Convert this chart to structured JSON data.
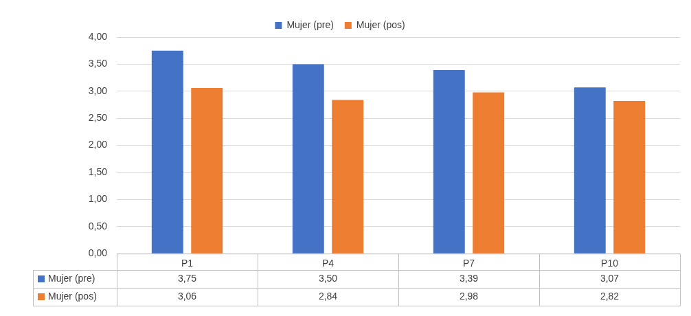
{
  "chart_data": {
    "type": "bar",
    "categories": [
      "P1",
      "P4",
      "P7",
      "P10"
    ],
    "series": [
      {
        "name": "Mujer (pre)",
        "color": "#4472c4",
        "values": [
          3.75,
          3.5,
          3.39,
          3.07
        ],
        "value_labels": [
          "3,75",
          "3,50",
          "3,39",
          "3,07"
        ]
      },
      {
        "name": "Mujer (pos)",
        "color": "#ed7d31",
        "values": [
          3.06,
          2.84,
          2.98,
          2.82
        ],
        "value_labels": [
          "3,06",
          "2,84",
          "2,98",
          "2,82"
        ]
      }
    ],
    "ylim": [
      0,
      4
    ],
    "yticks": [
      {
        "value": 0,
        "label": "0,00"
      },
      {
        "value": 0.5,
        "label": "0,50"
      },
      {
        "value": 1,
        "label": "1,00"
      },
      {
        "value": 1.5,
        "label": "1,50"
      },
      {
        "value": 2,
        "label": "2,00"
      },
      {
        "value": 2.5,
        "label": "2,50"
      },
      {
        "value": 3,
        "label": "3,00"
      },
      {
        "value": 3.5,
        "label": "3,50"
      },
      {
        "value": 4,
        "label": "4,00"
      }
    ],
    "grid": "y",
    "legend": "top"
  }
}
